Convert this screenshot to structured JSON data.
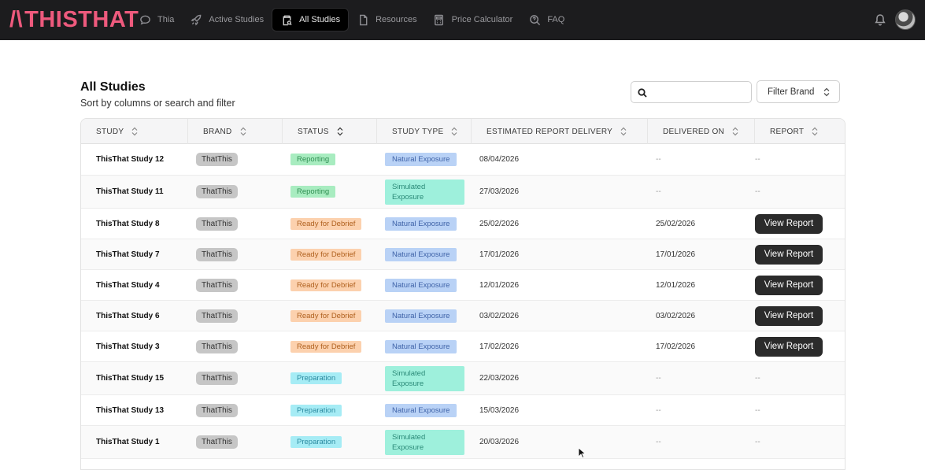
{
  "brand": {
    "logo_text": "THISTHAT",
    "accent": "#ee5a7d"
  },
  "nav": [
    {
      "label": "Thia",
      "icon": "chat-bubble-icon",
      "active": false
    },
    {
      "label": "Active Studies",
      "icon": "rocket-icon",
      "active": false
    },
    {
      "label": "All Studies",
      "icon": "clipboard-search-icon",
      "active": true
    },
    {
      "label": "Resources",
      "icon": "document-icon",
      "active": false
    },
    {
      "label": "Price Calculator",
      "icon": "calculator-icon",
      "active": false
    },
    {
      "label": "FAQ",
      "icon": "search-question-icon",
      "active": false
    }
  ],
  "header_right": {
    "bell_icon": "bell-icon",
    "avatar": "user-avatar"
  },
  "page": {
    "title": "All Studies",
    "subtitle": "Sort by columns or search and filter",
    "search": {
      "placeholder": "",
      "value": ""
    },
    "filter_label": "Filter Brand"
  },
  "table": {
    "columns": [
      "STUDY",
      "BRAND",
      "STATUS",
      "STUDY TYPE",
      "ESTIMATED REPORT DELIVERY",
      "DELIVERED ON",
      "REPORT"
    ],
    "rows": [
      {
        "study": "ThisThat Study 12",
        "brand": "ThatThis",
        "status": "Reporting",
        "status_kind": "reporting",
        "type_line1": "Natural Exposure",
        "type_line2": "",
        "estimated": "08/04/2026",
        "delivered": "--",
        "report": "--"
      },
      {
        "study": "ThisThat Study 11",
        "brand": "ThatThis",
        "status": "Reporting",
        "status_kind": "reporting",
        "type_line1": "Simulated",
        "type_line2": "Exposure",
        "estimated": "27/03/2026",
        "delivered": "--",
        "report": "--"
      },
      {
        "study": "ThisThat Study 8",
        "brand": "ThatThis",
        "status": "Ready for Debrief",
        "status_kind": "debrief",
        "type_line1": "Natural Exposure",
        "type_line2": "",
        "estimated": "25/02/2026",
        "delivered": "25/02/2026",
        "report": "View Report"
      },
      {
        "study": "ThisThat Study 7",
        "brand": "ThatThis",
        "status": "Ready for Debrief",
        "status_kind": "debrief",
        "type_line1": "Natural Exposure",
        "type_line2": "",
        "estimated": "17/01/2026",
        "delivered": "17/01/2026",
        "report": "View Report"
      },
      {
        "study": "ThisThat Study 4",
        "brand": "ThatThis",
        "status": "Ready for Debrief",
        "status_kind": "debrief",
        "type_line1": "Natural Exposure",
        "type_line2": "",
        "estimated": "12/01/2026",
        "delivered": "12/01/2026",
        "report": "View Report"
      },
      {
        "study": "ThisThat Study 6",
        "brand": "ThatThis",
        "status": "Ready for Debrief",
        "status_kind": "debrief",
        "type_line1": "Natural Exposure",
        "type_line2": "",
        "estimated": "03/02/2026",
        "delivered": "03/02/2026",
        "report": "View Report"
      },
      {
        "study": "ThisThat Study 3",
        "brand": "ThatThis",
        "status": "Ready for Debrief",
        "status_kind": "debrief",
        "type_line1": "Natural Exposure",
        "type_line2": "",
        "estimated": "17/02/2026",
        "delivered": "17/02/2026",
        "report": "View Report"
      },
      {
        "study": "ThisThat Study 15",
        "brand": "ThatThis",
        "status": "Preparation",
        "status_kind": "prep",
        "type_line1": "Simulated",
        "type_line2": "Exposure",
        "estimated": "22/03/2026",
        "delivered": "--",
        "report": "--"
      },
      {
        "study": "ThisThat Study 13",
        "brand": "ThatThis",
        "status": "Preparation",
        "status_kind": "prep",
        "type_line1": "Natural Exposure",
        "type_line2": "",
        "estimated": "15/03/2026",
        "delivered": "--",
        "report": "--"
      },
      {
        "study": "ThisThat Study 1",
        "brand": "ThatThis",
        "status": "Preparation",
        "status_kind": "prep",
        "type_line1": "Simulated",
        "type_line2": "Exposure",
        "estimated": "20/03/2026",
        "delivered": "--",
        "report": "--"
      }
    ]
  },
  "colors": {
    "topbar": "#1c1c1e",
    "status_reporting": "#a8ecc0",
    "status_debrief": "#fcd1ae",
    "status_prep": "#a6ecf5",
    "type_natural": "#b9d2f6",
    "type_simulated": "#9ef0dc",
    "view_button": "#2b2b2b"
  }
}
